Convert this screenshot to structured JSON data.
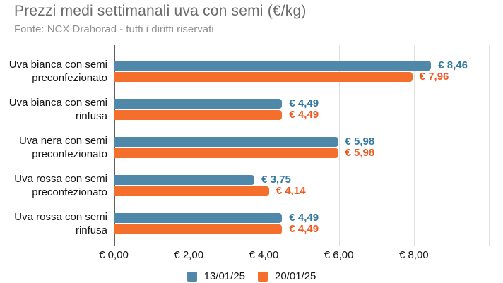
{
  "header": {
    "title": "Prezzi medi settimanali uva con semi (€/kg)",
    "subtitle": "Fonte: NCX Drahorad - tutti i diritti riservati"
  },
  "chart_data": {
    "type": "bar",
    "orientation": "horizontal",
    "title": "Prezzi medi settimanali uva con semi (€/kg)",
    "subtitle": "Fonte: NCX Drahorad - tutti i diritti riservati",
    "categories": [
      [
        "Uva bianca con semi",
        "preconfezionato"
      ],
      [
        "Uva bianca con semi",
        "rinfusa"
      ],
      [
        "Uva nera con semi",
        "preconfezionato"
      ],
      [
        "Uva rossa con semi",
        "preconfezionato"
      ],
      [
        "Uva rossa con semi",
        "rinfusa"
      ]
    ],
    "series": [
      {
        "name": "13/01/25",
        "color": "#4f88a9",
        "label_color": "#35799f",
        "values": [
          8.46,
          4.49,
          5.98,
          3.75,
          4.49
        ],
        "labels": [
          "€ 8,46",
          "€ 4,49",
          "€ 5,98",
          "€ 3,75",
          "€ 4,49"
        ]
      },
      {
        "name": "20/01/25",
        "color": "#f46f2b",
        "label_color": "#f05a22",
        "values": [
          7.96,
          4.49,
          5.98,
          4.14,
          4.49
        ],
        "labels": [
          "€ 7,96",
          "€ 4,49",
          "€ 5,98",
          "€ 4,14",
          "€ 4,49"
        ]
      }
    ],
    "xlim": [
      0,
      10
    ],
    "x_ticks": [
      {
        "value": 0,
        "label": "€ 0,00"
      },
      {
        "value": 2,
        "label": "€ 2,00"
      },
      {
        "value": 4,
        "label": "€ 4,00"
      },
      {
        "value": 6,
        "label": "€ 6,00"
      },
      {
        "value": 8,
        "label": "€ 8,00"
      },
      {
        "value": 10,
        "label": ""
      }
    ],
    "grid": true,
    "legend_position": "bottom"
  },
  "colors": {
    "axis_line": "#5f5f5f",
    "gridline": "#e0e0e0",
    "title": "#6b6b6b",
    "subtitle": "#909090",
    "text": "#141414"
  }
}
